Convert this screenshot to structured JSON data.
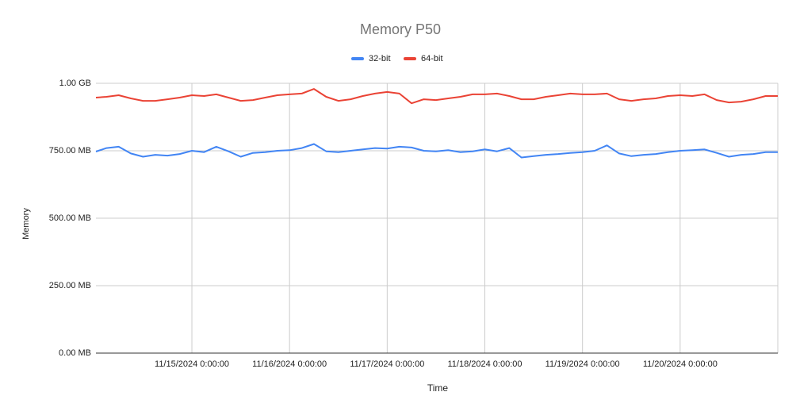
{
  "chart_data": {
    "type": "line",
    "title": "Memory P50",
    "x_label": "Time",
    "y_label": "Memory",
    "x": [
      "11/14/2024 0:25:00",
      "11/14/2024 3:00:00",
      "11/14/2024 6:00:00",
      "11/14/2024 9:00:00",
      "11/14/2024 12:00:00",
      "11/14/2024 15:00:00",
      "11/14/2024 18:00:00",
      "11/14/2024 21:00:00",
      "11/15/2024 0:00:00",
      "11/15/2024 3:00:00",
      "11/15/2024 6:00:00",
      "11/15/2024 9:00:00",
      "11/15/2024 12:00:00",
      "11/15/2024 15:00:00",
      "11/15/2024 18:00:00",
      "11/15/2024 21:00:00",
      "11/16/2024 0:00:00",
      "11/16/2024 3:00:00",
      "11/16/2024 6:00:00",
      "11/16/2024 9:00:00",
      "11/16/2024 12:00:00",
      "11/16/2024 15:00:00",
      "11/16/2024 18:00:00",
      "11/16/2024 21:00:00",
      "11/17/2024 0:00:00",
      "11/17/2024 3:00:00",
      "11/17/2024 6:00:00",
      "11/17/2024 9:00:00",
      "11/17/2024 12:00:00",
      "11/17/2024 15:00:00",
      "11/17/2024 18:00:00",
      "11/17/2024 21:00:00",
      "11/18/2024 0:00:00",
      "11/18/2024 3:00:00",
      "11/18/2024 6:00:00",
      "11/18/2024 9:00:00",
      "11/18/2024 12:00:00",
      "11/18/2024 15:00:00",
      "11/18/2024 18:00:00",
      "11/18/2024 21:00:00",
      "11/19/2024 0:00:00",
      "11/19/2024 3:00:00",
      "11/19/2024 6:00:00",
      "11/19/2024 9:00:00",
      "11/19/2024 12:00:00",
      "11/19/2024 15:00:00",
      "11/19/2024 18:00:00",
      "11/19/2024 21:00:00",
      "11/20/2024 0:00:00",
      "11/20/2024 3:00:00",
      "11/20/2024 6:00:00",
      "11/20/2024 9:00:00",
      "11/20/2024 12:00:00",
      "11/20/2024 15:00:00",
      "11/20/2024 18:00:00",
      "11/20/2024 21:00:00",
      "11/21/2024 0:00:00"
    ],
    "series": [
      {
        "name": "32-bit",
        "color": "#4285f4",
        "values": [
          747,
          760,
          765,
          740,
          728,
          735,
          732,
          738,
          750,
          745,
          765,
          748,
          728,
          742,
          745,
          750,
          752,
          760,
          775,
          748,
          745,
          750,
          755,
          760,
          758,
          765,
          762,
          750,
          748,
          752,
          745,
          748,
          755,
          748,
          760,
          725,
          730,
          735,
          738,
          742,
          745,
          750,
          770,
          740,
          730,
          735,
          738,
          745,
          750,
          752,
          755,
          742,
          728,
          735,
          738,
          745,
          745
        ]
      },
      {
        "name": "64-bit",
        "color": "#ea4335",
        "values": [
          947,
          950,
          956,
          944,
          935,
          935,
          941,
          947,
          956,
          953,
          959,
          947,
          935,
          938,
          947,
          956,
          959,
          962,
          979,
          950,
          935,
          941,
          953,
          962,
          968,
          962,
          926,
          941,
          938,
          944,
          950,
          959,
          959,
          962,
          953,
          941,
          941,
          950,
          956,
          962,
          959,
          959,
          962,
          941,
          935,
          941,
          944,
          953,
          956,
          953,
          959,
          938,
          929,
          932,
          941,
          953,
          953
        ]
      }
    ],
    "xlim": [
      "11/14/2024 0:25:00",
      "11/21/2024 0:00:00"
    ],
    "xticks": [
      "11/15/2024 0:00:00",
      "11/16/2024 0:00:00",
      "11/17/2024 0:00:00",
      "11/18/2024 0:00:00",
      "11/19/2024 0:00:00",
      "11/20/2024 0:00:00"
    ],
    "ylim": [
      0,
      1000
    ],
    "yticks": [
      {
        "value": 0,
        "label": "0.00 MB"
      },
      {
        "value": 250,
        "label": "250.00 MB"
      },
      {
        "value": 500,
        "label": "500.00 MB"
      },
      {
        "value": 750,
        "label": "750.00 MB"
      },
      {
        "value": 1000,
        "label": "1.00 GB"
      }
    ],
    "grid": true,
    "legend": "top"
  }
}
